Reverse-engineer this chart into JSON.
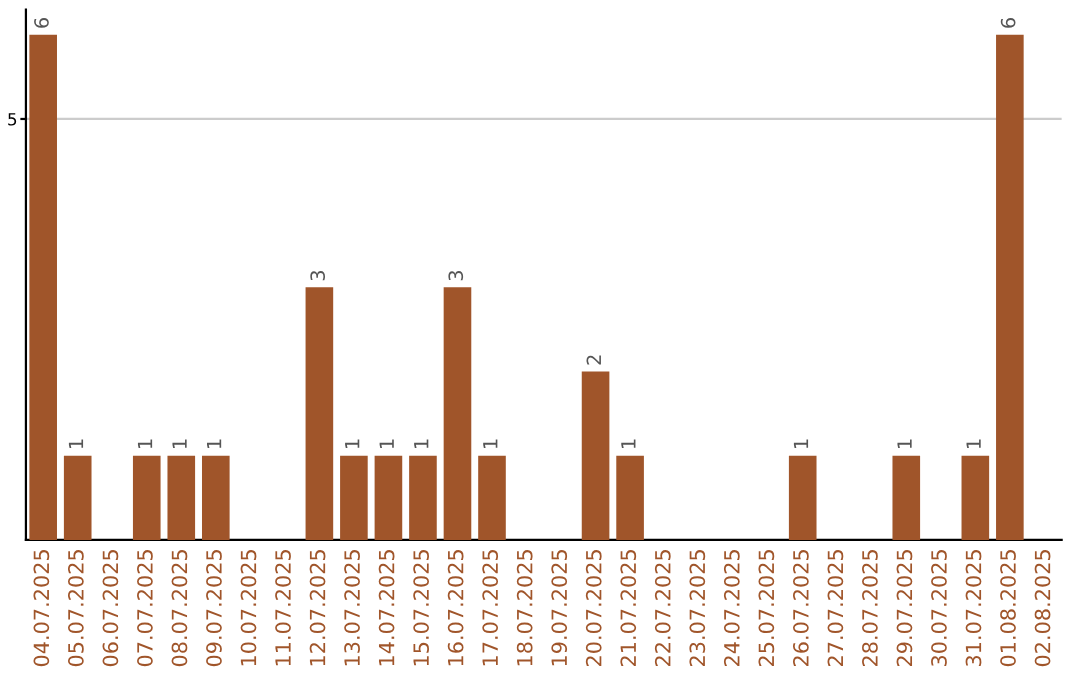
{
  "chart_data": {
    "type": "bar",
    "categories": [
      "04.07.2025",
      "05.07.2025",
      "06.07.2025",
      "07.07.2025",
      "08.07.2025",
      "09.07.2025",
      "10.07.2025",
      "11.07.2025",
      "12.07.2025",
      "13.07.2025",
      "14.07.2025",
      "15.07.2025",
      "16.07.2025",
      "17.07.2025",
      "18.07.2025",
      "19.07.2025",
      "20.07.2025",
      "21.07.2025",
      "22.07.2025",
      "23.07.2025",
      "24.07.2025",
      "25.07.2025",
      "26.07.2025",
      "27.07.2025",
      "28.07.2025",
      "29.07.2025",
      "30.07.2025",
      "31.07.2025",
      "01.08.2025",
      "02.08.2025"
    ],
    "values": [
      6,
      1,
      0,
      1,
      1,
      1,
      0,
      0,
      3,
      1,
      1,
      1,
      3,
      1,
      0,
      0,
      2,
      1,
      0,
      0,
      0,
      0,
      1,
      0,
      0,
      1,
      0,
      1,
      6,
      0
    ],
    "value_labels": [
      "6",
      "1",
      null,
      "1",
      "1",
      "1",
      null,
      null,
      "3",
      "1",
      "1",
      "1",
      "3",
      "1",
      null,
      null,
      "2",
      "1",
      null,
      null,
      null,
      null,
      "1",
      null,
      null,
      "1",
      null,
      "1",
      "6",
      null
    ],
    "color": "#a0552a",
    "ylim": [
      0,
      6.3
    ],
    "yticks": [
      5
    ],
    "grid": "y",
    "legend": false
  }
}
